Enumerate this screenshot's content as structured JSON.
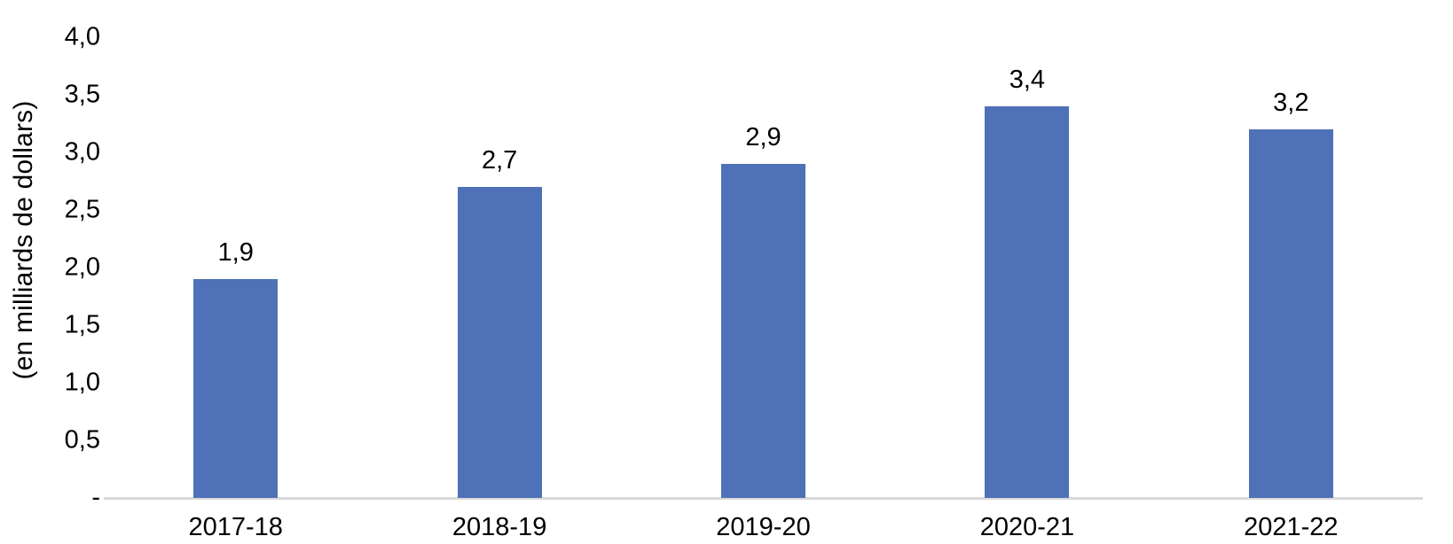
{
  "chart_data": {
    "type": "bar",
    "title": "",
    "categories": [
      "2017-18",
      "2018-19",
      "2019-20",
      "2020-21",
      "2021-22"
    ],
    "values": [
      1.9,
      2.7,
      2.9,
      3.4,
      3.2
    ],
    "value_labels": [
      "1,9",
      "2,7",
      "2,9",
      "3,4",
      "3,2"
    ],
    "series": [
      {
        "name": "",
        "values": [
          1.9,
          2.7,
          2.9,
          3.4,
          3.2
        ]
      }
    ],
    "xlabel": "",
    "ylabel": "(en milliards de dollars)",
    "ylim": [
      0,
      4
    ],
    "yticks": [
      {
        "value": 4.0,
        "label": "4,0"
      },
      {
        "value": 3.5,
        "label": "3,5"
      },
      {
        "value": 3.0,
        "label": "3,0"
      },
      {
        "value": 2.5,
        "label": "2,5"
      },
      {
        "value": 2.0,
        "label": "2,0"
      },
      {
        "value": 1.5,
        "label": "1,5"
      },
      {
        "value": 1.0,
        "label": "1,0"
      },
      {
        "value": 0.5,
        "label": "0,5"
      },
      {
        "value": 0.0,
        "label": "-"
      }
    ],
    "grid": false,
    "legend": false,
    "data_labels": true,
    "colors": {
      "bar": "#4E71B7",
      "axis_line": "#D9D9D9",
      "text": "#000000",
      "background": "#FFFFFF"
    }
  }
}
